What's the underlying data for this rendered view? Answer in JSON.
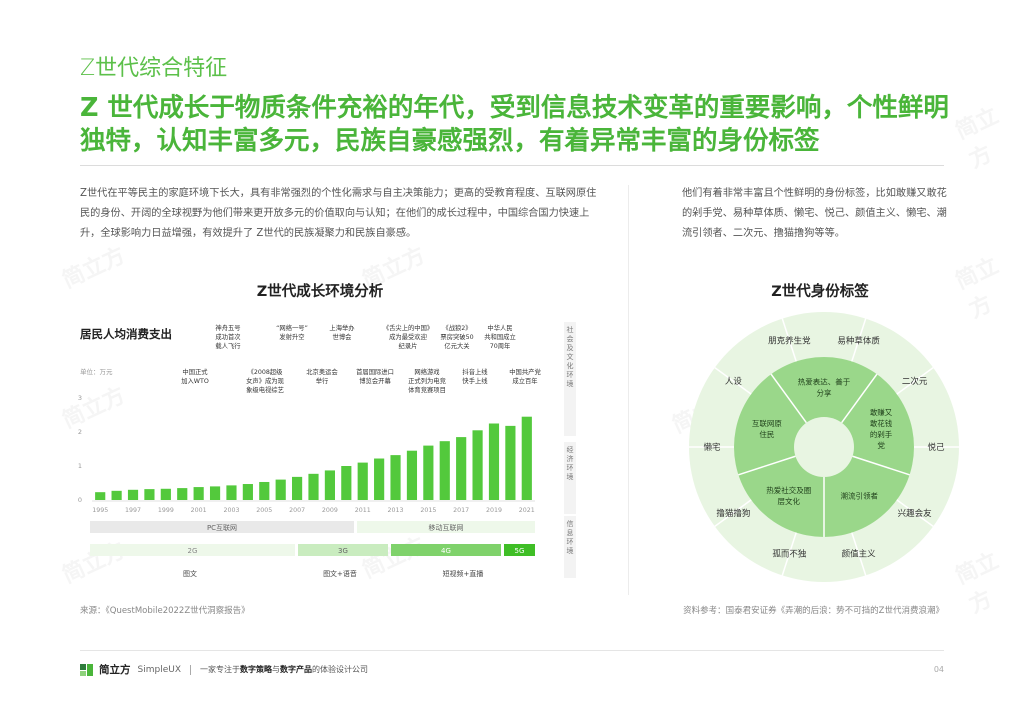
{
  "section_label": "Z世代综合特征",
  "headline": "Z 世代成长于物质条件充裕的年代，受到信息技术变革的重要影响，个性鲜明独特，认知丰富多元，民族自豪感强烈，有着异常丰富的身份标签",
  "intro_left": "Z世代在平等民主的家庭环境下长大，具有非常强烈的个性化需求与自主决策能力；更高的受教育程度、互联网原住民的身份、开阔的全球视野为他们带来更开放多元的价值取向与认知；在他们的成长过程中，中国综合国力快速上升，全球影响力日益增强，有效提升了 Z世代的民族凝聚力和民族自豪感。",
  "intro_right": "他们有着非常丰富且个性鲜明的身份标签，比如敢赚又敢花的剁手党、易种草体质、懒宅、悦己、颜值主义、懒宅、潮流引领者、二次元、撸猫撸狗等等。",
  "left_panel": {
    "title": "Z世代成长环境分析",
    "chart_title": "居民人均消费支出",
    "unit": "单位：万元",
    "events": [
      {
        "lines": [
          "神舟五号",
          "成功首次",
          "载人飞行"
        ]
      },
      {
        "lines": [
          "“网络一号”",
          "发射升空"
        ]
      },
      {
        "lines": [
          "上海举办",
          "世博会"
        ]
      },
      {
        "lines": [
          "《舌尖上的中国》",
          "成为最受欢迎",
          "纪录片"
        ]
      },
      {
        "lines": [
          "《战狼2》",
          "票房突破50",
          "亿元大关"
        ]
      },
      {
        "lines": [
          "中华人民",
          "共和国成立",
          "70周年"
        ]
      },
      {
        "lines": [
          "中国正式",
          "加入WTO"
        ]
      },
      {
        "lines": [
          "《2008超级",
          "女声》成为现",
          "象级电视综艺"
        ]
      },
      {
        "lines": [
          "北京奥运会",
          "举行"
        ]
      },
      {
        "lines": [
          "首届国际进口",
          "博览会开幕"
        ]
      },
      {
        "lines": [
          "网络游戏",
          "正式列为电竞",
          "体育竞赛项目"
        ]
      },
      {
        "lines": [
          "抖音上线",
          "快手上线"
        ]
      },
      {
        "lines": [
          "中国共产党",
          "成立百年"
        ]
      }
    ],
    "side_labels": [
      "社会及文化环境",
      "经济环境",
      "信息环境"
    ],
    "eras": {
      "internet": [
        "PC互联网",
        "移动互联网"
      ],
      "network": [
        "2G",
        "3G",
        "4G",
        "5G"
      ],
      "media": [
        "图文",
        "图文+语音",
        "短视频+直播"
      ]
    }
  },
  "right_panel": {
    "title": "Z世代身份标签",
    "outer_labels": [
      "朋克养生党",
      "易种草体质",
      "二次元",
      "悦己",
      "兴趣会友",
      "颜值主义",
      "孤而不独",
      "撸猫撸狗",
      "懒宅",
      "人设"
    ],
    "inner_labels": [
      "热爱表达、善于分享",
      "敢赚又敢花钱的剁手党",
      "潮流引领者",
      "热爱社交及圈层文化",
      "互联网原住民"
    ]
  },
  "source_left": "来源：《QuestMobile2022Z世代洞察报告》",
  "source_right": "资料参考：国泰君安证券《弄潮的后浪：势不可挡的Z世代消费浪潮》",
  "footer": {
    "brand": "简立方",
    "brand_en": "SimpleUX",
    "tagline_pre": "一家专注于",
    "tagline_b1": "数字策略",
    "tagline_mid": "与",
    "tagline_b2": "数字产品",
    "tagline_post": "的体验设计公司",
    "page": "04"
  },
  "watermark": "简立方",
  "colors": {
    "brand_green": "#4ab53a",
    "bar_green": "#53c93c",
    "donut_outer": "#e8f5e2",
    "donut_inner": "#9ad78a"
  },
  "chart_data": {
    "type": "bar",
    "title": "居民人均消费支出",
    "ylabel": "单位：万元",
    "x": [
      "1995",
      "1996",
      "1997",
      "1998",
      "1999",
      "2000",
      "2001",
      "2002",
      "2003",
      "2004",
      "2005",
      "2006",
      "2007",
      "2008",
      "2009",
      "2010",
      "2011",
      "2012",
      "2013",
      "2014",
      "2015",
      "2016",
      "2017",
      "2018",
      "2019",
      "2020",
      "2021"
    ],
    "x_ticks": [
      "1995",
      "1997",
      "1999",
      "2001",
      "2003",
      "2005",
      "2007",
      "2009",
      "2011",
      "2013",
      "2015",
      "2017",
      "2019",
      "2021"
    ],
    "values": [
      0.23,
      0.27,
      0.3,
      0.32,
      0.33,
      0.35,
      0.38,
      0.4,
      0.43,
      0.47,
      0.53,
      0.6,
      0.68,
      0.77,
      0.87,
      1.0,
      1.1,
      1.22,
      1.32,
      1.45,
      1.6,
      1.73,
      1.85,
      2.05,
      2.25,
      2.18,
      2.45
    ],
    "ylim": [
      0,
      3
    ],
    "yticks": [
      0,
      1,
      2,
      3
    ],
    "grid": false
  }
}
